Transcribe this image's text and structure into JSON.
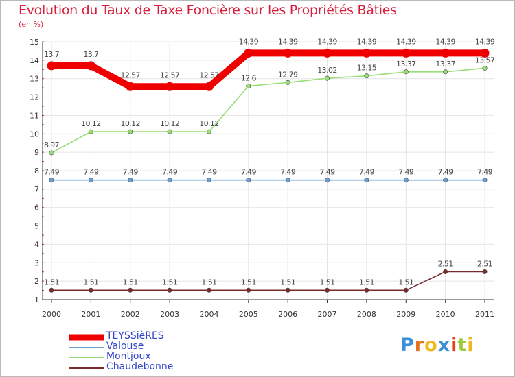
{
  "header": {
    "title": "Evolution du Taux de Taxe Foncière sur les Propriétés Bâties",
    "subtitle": "(en %)"
  },
  "logo": {
    "text": "Proxiti",
    "letters": [
      "P",
      "r",
      "o",
      "x",
      "i",
      "t",
      "i"
    ],
    "colors": [
      "#3a8fd8",
      "#e8701a",
      "#f0b81c",
      "#3a8fd8",
      "#e8401a",
      "#9ccc3a",
      "#f0b81c"
    ]
  },
  "chart_data": {
    "type": "line",
    "title": "Evolution du Taux de Taxe Foncière sur les Propriétés Bâties",
    "ylabel": "(en %)",
    "xlabel": "",
    "ylim": [
      1,
      15
    ],
    "yticks": [
      "1",
      "2",
      "3",
      "4",
      "5",
      "6",
      "7",
      "8",
      "9",
      "10",
      "11",
      "12",
      "13",
      "14",
      "15"
    ],
    "categories": [
      "2000",
      "2001",
      "2002",
      "2003",
      "2004",
      "2005",
      "2006",
      "2007",
      "2008",
      "2009",
      "2010",
      "2011"
    ],
    "grid": true,
    "legend_position": "bottom-left",
    "series": [
      {
        "name": "TEYSSièRES",
        "color": "#ee0000",
        "weight": "heavy",
        "values": [
          13.7,
          13.7,
          12.57,
          12.57,
          12.57,
          14.39,
          14.39,
          14.39,
          14.39,
          14.39,
          14.39,
          14.39
        ],
        "labels": [
          "13.7",
          "13.7",
          "12.57",
          "12.57",
          "12.57",
          "14.39",
          "14.39",
          "14.39",
          "14.39",
          "14.39",
          "14.39",
          "14.39"
        ]
      },
      {
        "name": "Valouse",
        "color": "#6a9fd0",
        "weight": "thin",
        "values": [
          7.49,
          7.49,
          7.49,
          7.49,
          7.49,
          7.49,
          7.49,
          7.49,
          7.49,
          7.49,
          7.49,
          7.49
        ],
        "labels": [
          "7.49",
          "7.49",
          "7.49",
          "7.49",
          "7.49",
          "7.49",
          "7.49",
          "7.49",
          "7.49",
          "7.49",
          "7.49",
          "7.49"
        ]
      },
      {
        "name": "Montjoux",
        "color": "#99dd77",
        "weight": "thin",
        "values": [
          8.97,
          10.12,
          10.12,
          10.12,
          10.12,
          12.6,
          12.79,
          13.02,
          13.15,
          13.37,
          13.37,
          13.57
        ],
        "labels": [
          "8.97",
          "10.12",
          "10.12",
          "10.12",
          "10.12",
          "12.6",
          "12.79",
          "13.02",
          "13.15",
          "13.37",
          "13.37",
          "13.57"
        ]
      },
      {
        "name": "Chaudebonne",
        "color": "#7a2b2b",
        "weight": "thin",
        "values": [
          1.51,
          1.51,
          1.51,
          1.51,
          1.51,
          1.51,
          1.51,
          1.51,
          1.51,
          1.51,
          2.51,
          2.51
        ],
        "labels": [
          "1.51",
          "1.51",
          "1.51",
          "1.51",
          "1.51",
          "1.51",
          "1.51",
          "1.51",
          "1.51",
          "1.51",
          "2.51",
          "2.51"
        ]
      }
    ]
  }
}
